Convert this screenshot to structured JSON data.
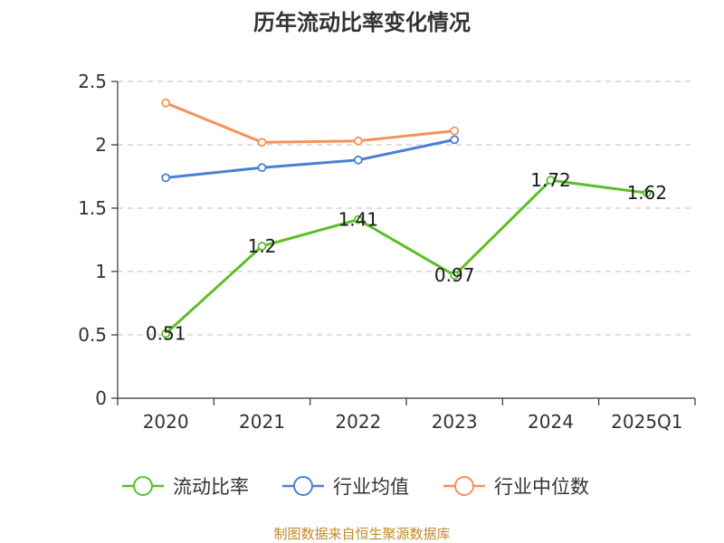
{
  "chart_data": {
    "type": "line",
    "title": "历年流动比率变化情况",
    "categories": [
      "2020",
      "2021",
      "2022",
      "2023",
      "2024",
      "2025Q1"
    ],
    "y_ticks": [
      "0",
      "0.5",
      "1",
      "1.5",
      "2",
      "2.5"
    ],
    "ylim": [
      0,
      2.5
    ],
    "grid": true,
    "legend_position": "bottom",
    "series": [
      {
        "name": "流动比率",
        "color": "#5bbf2a",
        "values": [
          0.51,
          1.2,
          1.41,
          0.97,
          1.72,
          1.62
        ],
        "labels": [
          "0.51",
          "1.2",
          "1.41",
          "0.97",
          "1.72",
          "1.62"
        ]
      },
      {
        "name": "行业均值",
        "color": "#4a7fd6",
        "values": [
          1.74,
          1.82,
          1.88,
          2.04,
          null,
          null
        ]
      },
      {
        "name": "行业中位数",
        "color": "#f5915a",
        "values": [
          2.33,
          2.02,
          2.03,
          2.11,
          null,
          null
        ]
      }
    ],
    "source": "制图数据来自恒生聚源数据库"
  }
}
